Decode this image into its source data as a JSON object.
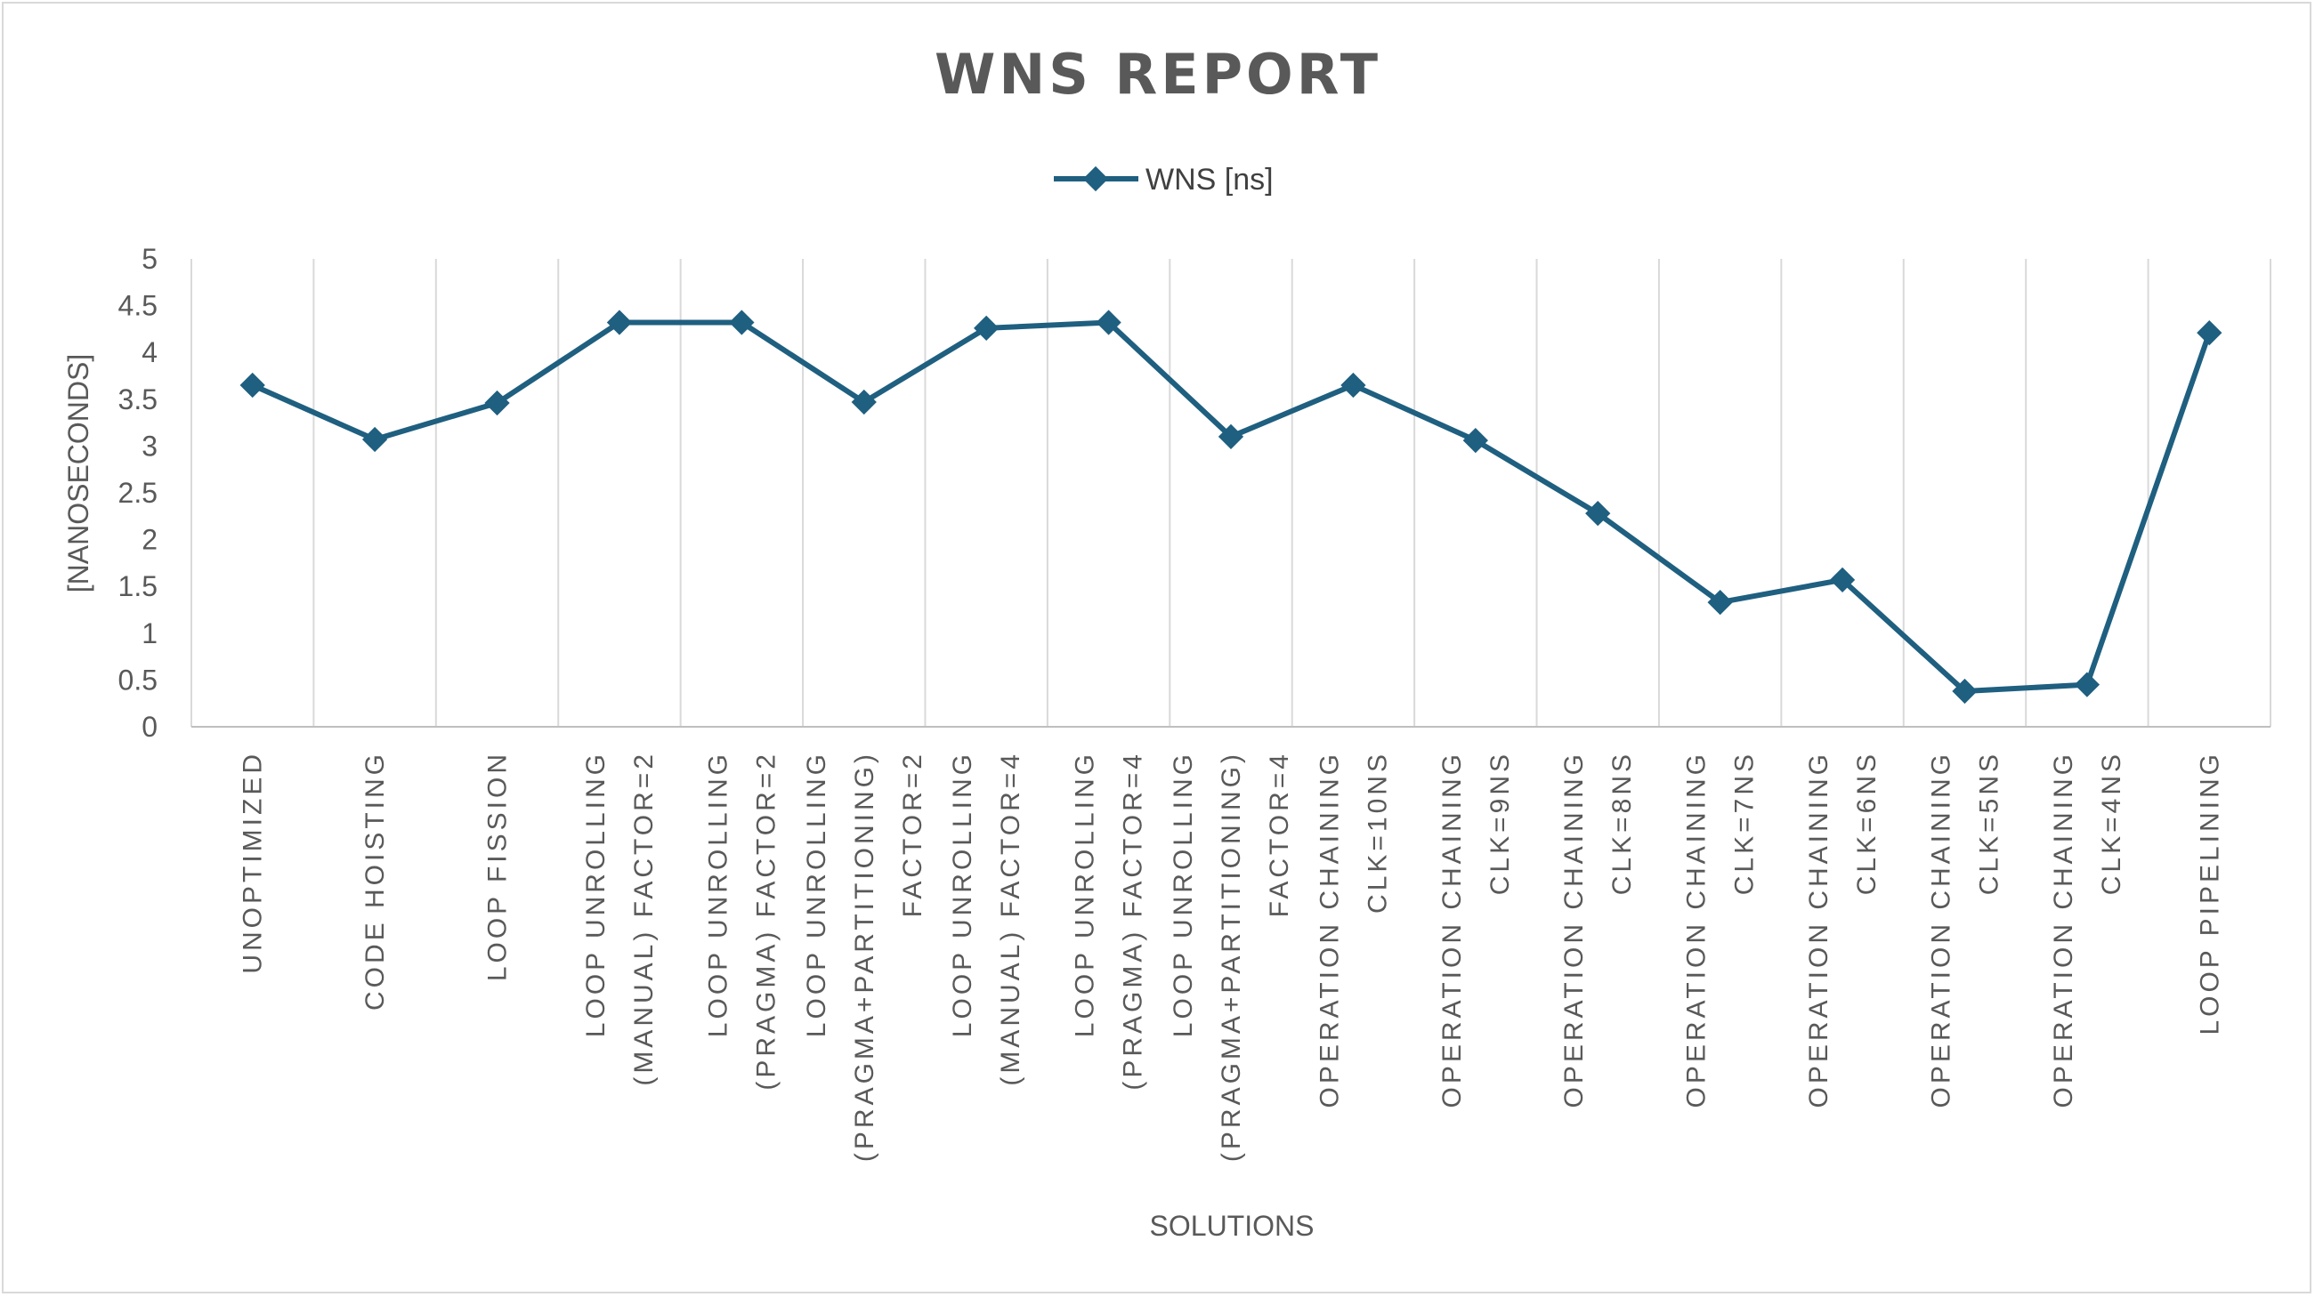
{
  "chart_data": {
    "type": "line",
    "title": "WNS REPORT",
    "xlabel": "SOLUTIONS",
    "ylabel": "[NANOSECONDS]",
    "ylim": [
      0,
      5
    ],
    "yticks": [
      "0",
      "0.5",
      "1",
      "1.5",
      "2",
      "2.5",
      "3",
      "3.5",
      "4",
      "4.5",
      "5"
    ],
    "grid": "vertical category gridlines",
    "legend": "top-center",
    "categories": [
      [
        "UNOPTIMIZED"
      ],
      [
        "CODE HOISTING"
      ],
      [
        "LOOP FISSION"
      ],
      [
        "LOOP UNROLLING",
        "(MANUAL) FACTOR=2"
      ],
      [
        "LOOP UNROLLING",
        "(PRAGMA) FACTOR=2"
      ],
      [
        "LOOP UNROLLING",
        "(PRAGMA+PARTITIONING)",
        "FACTOR=2"
      ],
      [
        "LOOP UNROLLING",
        "(MANUAL) FACTOR=4"
      ],
      [
        "LOOP UNROLLING",
        "(PRAGMA) FACTOR=4"
      ],
      [
        "LOOP UNROLLING",
        "(PRAGMA+PARTITIONING)",
        "FACTOR=4"
      ],
      [
        "OPERATION CHAINING",
        "CLK=10NS"
      ],
      [
        "OPERATION CHAINING",
        "CLK=9NS"
      ],
      [
        "OPERATION CHAINING",
        "CLK=8NS"
      ],
      [
        "OPERATION CHAINING",
        "CLK=7NS"
      ],
      [
        "OPERATION CHAINING",
        "CLK=6NS"
      ],
      [
        "OPERATION CHAINING",
        "CLK=5NS"
      ],
      [
        "OPERATION CHAINING",
        "CLK=4NS"
      ],
      [
        "LOOP PIPELINING"
      ]
    ],
    "series": [
      {
        "name": "WNS [ns]",
        "color": "#1f5f80",
        "marker": "diamond",
        "values": [
          3.65,
          3.07,
          3.46,
          4.32,
          4.32,
          3.47,
          4.26,
          4.32,
          3.1,
          3.65,
          3.06,
          2.28,
          1.33,
          1.57,
          0.38,
          0.45,
          4.21
        ]
      }
    ]
  }
}
